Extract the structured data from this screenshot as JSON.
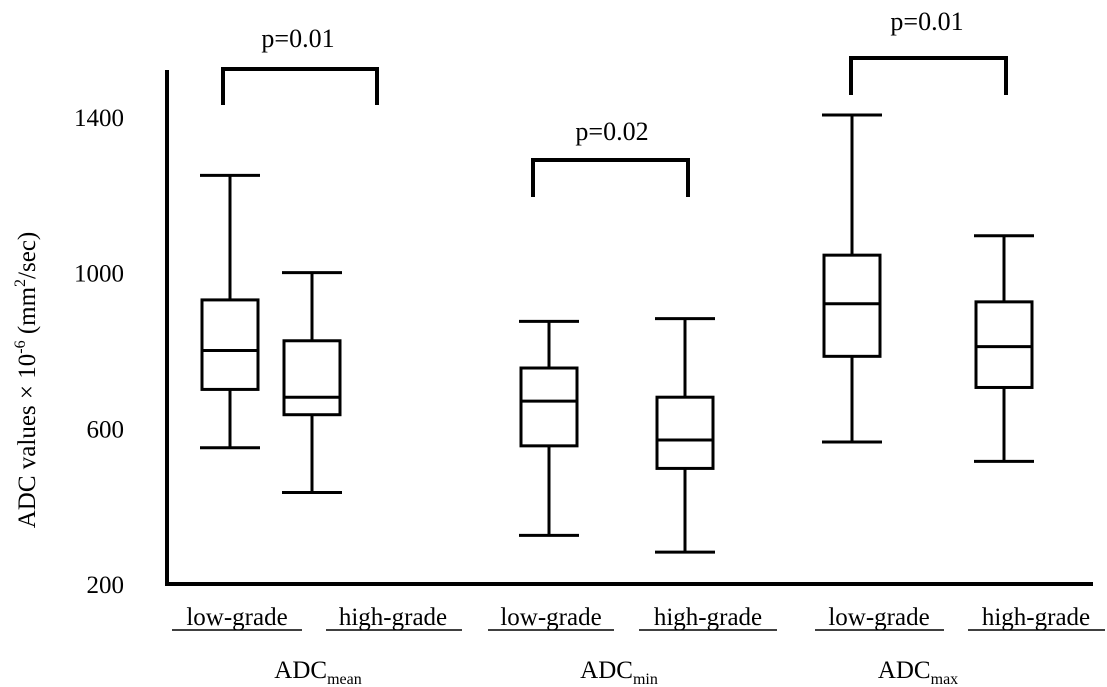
{
  "chart_data": {
    "type": "box",
    "ylabel_parts": {
      "main": "ADC values × 10",
      "sup_exp": "-6",
      "unit_open": " (mm",
      "unit_sup": "2",
      "unit_close": "/sec)"
    },
    "ylim": [
      200,
      1600
    ],
    "yticks": [
      200,
      600,
      1000,
      1400
    ],
    "groups": [
      {
        "label_base": "ADC",
        "label_sub": "mean",
        "pvalue": "p=0.01",
        "boxes": [
          {
            "category": "low-grade",
            "whisker_low": 550,
            "q1": 700,
            "median": 800,
            "q3": 930,
            "whisker_high": 1250
          },
          {
            "category": "high-grade",
            "whisker_low": 435,
            "q1": 635,
            "median": 680,
            "q3": 825,
            "whisker_high": 1000
          }
        ]
      },
      {
        "label_base": "ADC",
        "label_sub": "min",
        "pvalue": "p=0.02",
        "boxes": [
          {
            "category": "low-grade",
            "whisker_low": 325,
            "q1": 555,
            "median": 670,
            "q3": 755,
            "whisker_high": 875
          },
          {
            "category": "high-grade",
            "whisker_low": 282,
            "q1": 497,
            "median": 570,
            "q3": 680,
            "whisker_high": 882
          }
        ]
      },
      {
        "label_base": "ADC",
        "label_sub": "max",
        "pvalue": "p=0.01",
        "boxes": [
          {
            "category": "low-grade",
            "whisker_low": 565,
            "q1": 785,
            "median": 920,
            "q3": 1045,
            "whisker_high": 1405
          },
          {
            "category": "high-grade",
            "whisker_low": 515,
            "q1": 705,
            "median": 810,
            "q3": 925,
            "whisker_high": 1095
          }
        ]
      }
    ]
  }
}
